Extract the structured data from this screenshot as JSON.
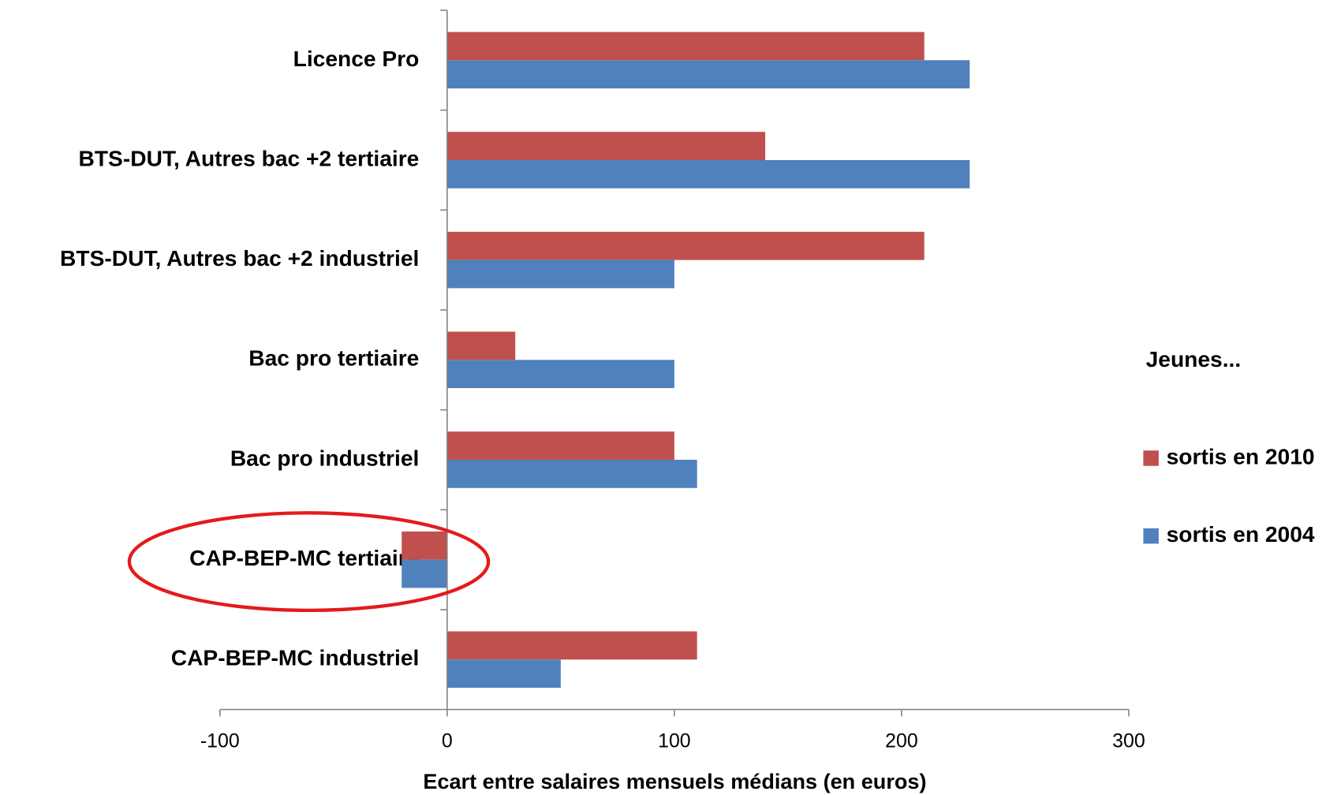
{
  "chart_data": {
    "type": "bar",
    "orientation": "horizontal",
    "categories": [
      "Licence Pro",
      "BTS-DUT, Autres bac +2 tertiaire",
      "BTS-DUT, Autres bac +2 industriel",
      "Bac pro tertiaire",
      "Bac pro industriel",
      "CAP-BEP-MC tertiaire",
      "CAP-BEP-MC industriel"
    ],
    "series": [
      {
        "name": "sortis en 2010",
        "color": "#c0504d",
        "values": [
          210,
          140,
          210,
          30,
          100,
          -20,
          110
        ]
      },
      {
        "name": "sortis en 2004",
        "color": "#4f81bd",
        "values": [
          230,
          230,
          100,
          100,
          110,
          -20,
          50
        ]
      }
    ],
    "xlim": [
      -100,
      300
    ],
    "xticks": [
      -100,
      0,
      100,
      200,
      300
    ],
    "x_label": "Ecart entre salaires mensuels médians (en euros)",
    "legend_title": "Jeunes...",
    "legend_position": "right",
    "grid": false
  }
}
